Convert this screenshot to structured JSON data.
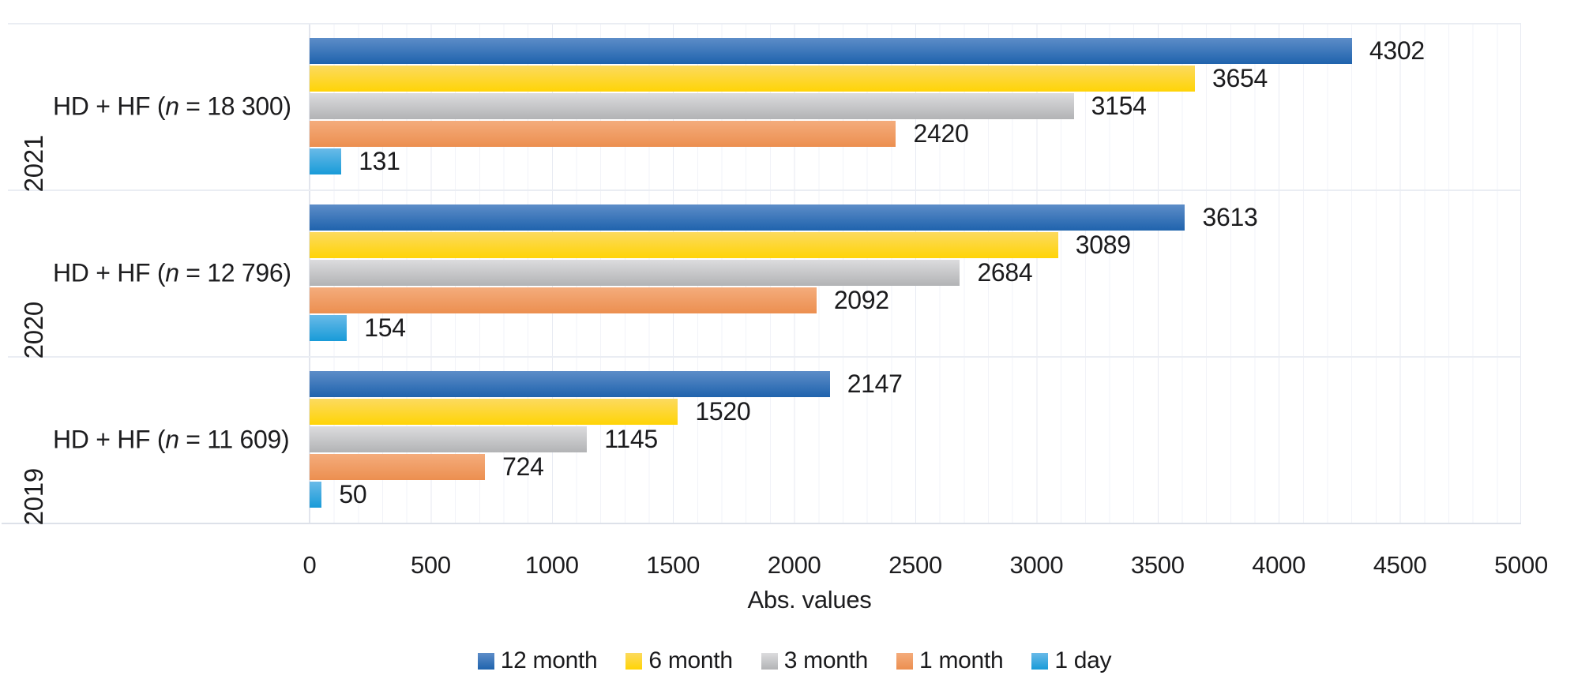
{
  "chart_data": {
    "type": "bar",
    "orientation": "horizontal",
    "title": "",
    "xlabel": "Abs. values",
    "ylabel": "",
    "xlim": [
      0,
      5000
    ],
    "x_ticks": [
      0,
      500,
      1000,
      1500,
      2000,
      2500,
      3000,
      3500,
      4000,
      4500,
      5000
    ],
    "grid": "vertical gridlines, minor every 100, major every 500",
    "legend_position": "bottom-center",
    "categories": [
      {
        "year": "2021",
        "label_prefix": "HD + HF (",
        "label_italic": "n",
        "label_suffix": " = 18 300)"
      },
      {
        "year": "2020",
        "label_prefix": "HD + HF (",
        "label_italic": "n",
        "label_suffix": " = 12 796)"
      },
      {
        "year": "2019",
        "label_prefix": "HD + HF (",
        "label_italic": "n",
        "label_suffix": " = 11 609)"
      }
    ],
    "series": [
      {
        "name": "12 month",
        "color_top": "#5d8dc8",
        "color_bottom": "#1f63ad",
        "values": [
          4302,
          3613,
          2147
        ]
      },
      {
        "name": "6 month",
        "color_top": "#fcda5f",
        "color_bottom": "#ffd406",
        "values": [
          3654,
          3089,
          1520
        ]
      },
      {
        "name": "3 month",
        "color_top": "#dcdcde",
        "color_bottom": "#b2b3b5",
        "values": [
          3154,
          2684,
          1145
        ]
      },
      {
        "name": "1 month",
        "color_top": "#f4ac7c",
        "color_bottom": "#ec8f50",
        "values": [
          2420,
          2092,
          724
        ]
      },
      {
        "name": "1 day",
        "color_top": "#69bae8",
        "color_bottom": "#189bd8",
        "values": [
          131,
          154,
          50
        ]
      }
    ]
  }
}
